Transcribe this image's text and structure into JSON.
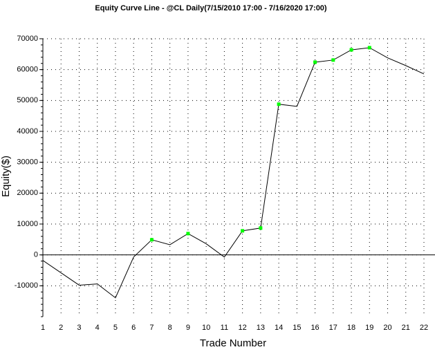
{
  "chart_data": {
    "type": "line",
    "title": "Equity Curve Line - @CL Daily(7/15/2010 17:00 - 7/16/2020 17:00)",
    "x_label": "Trade Number",
    "y_label": "Equity($)",
    "x": [
      1,
      2,
      3,
      4,
      5,
      6,
      7,
      8,
      9,
      10,
      11,
      12,
      13,
      14,
      15,
      16,
      17,
      18,
      19,
      20,
      21,
      22
    ],
    "series": [
      {
        "color": "#000000",
        "marker_color": "#00ff00",
        "values": [
          -1800,
          -5800,
          -9800,
          -9400,
          -13900,
          -700,
          4900,
          3300,
          6900,
          3600,
          -700,
          7800,
          8700,
          48800,
          48100,
          62400,
          63100,
          66400,
          67100,
          63800,
          61300,
          58600
        ]
      }
    ],
    "xlim": [
      1,
      22
    ],
    "xticks": [
      1,
      2,
      3,
      4,
      5,
      6,
      7,
      8,
      9,
      10,
      11,
      12,
      13,
      14,
      15,
      16,
      17,
      18,
      19,
      20,
      21,
      22
    ],
    "ylim": [
      -20000,
      70000
    ],
    "yticks": [
      -10000,
      0,
      10000,
      20000,
      30000,
      40000,
      50000,
      60000,
      70000
    ],
    "grid": true
  }
}
